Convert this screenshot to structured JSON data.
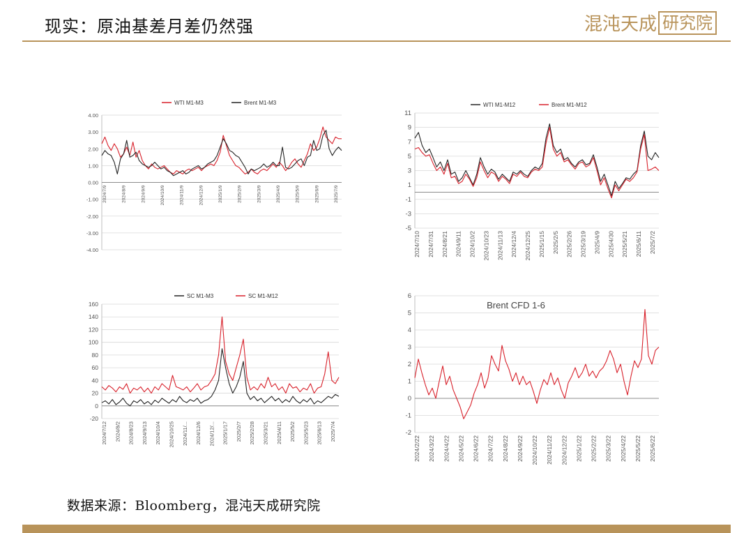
{
  "header": {
    "title": "现实：原油基差月差仍然强",
    "logo_main": "混沌天成",
    "logo_boxed": "研究院"
  },
  "footer": {
    "source": "数据来源：Bloomberg，混沌天成研究院"
  },
  "colors": {
    "red": "#d8202a",
    "black": "#222222",
    "gold": "#b8935a",
    "grid": "#d9d9d9"
  },
  "chart_data": [
    {
      "id": "chart1",
      "type": "line",
      "title": "",
      "ylim": [
        -4,
        4
      ],
      "yticks": [
        4.0,
        3.0,
        2.0,
        1.0,
        0.0,
        -1.0,
        -2.0,
        -3.0,
        -4.0
      ],
      "ytick_labels": [
        "4.00",
        "3.00",
        "2.00",
        "1.00",
        "0.00",
        "-1.00",
        "-2.00",
        "-3.00",
        "-4.00"
      ],
      "xticks": [
        "2024/7/9",
        "2024/8/9",
        "2024/9/9",
        "2024/10/9",
        "2024/11/9",
        "2024/12/9",
        "2025/1/9",
        "2025/2/9",
        "2025/3/9",
        "2025/4/9",
        "2025/5/9",
        "2025/6/9",
        "2025/7/9"
      ],
      "legend_position": "top",
      "series": [
        {
          "name": "WTI M1-M3",
          "color": "#d8202a",
          "values": [
            2.3,
            2.7,
            2.2,
            1.9,
            2.3,
            2.0,
            1.5,
            1.7,
            2.1,
            1.6,
            2.4,
            1.5,
            1.9,
            1.3,
            1.0,
            0.8,
            1.1,
            0.9,
            0.8,
            0.9,
            1.0,
            0.8,
            0.6,
            0.5,
            0.7,
            0.6,
            0.5,
            0.7,
            0.8,
            0.7,
            0.8,
            0.9,
            0.7,
            0.9,
            1.0,
            1.1,
            1.0,
            1.3,
            1.8,
            2.8,
            2.2,
            1.6,
            1.3,
            1.0,
            0.9,
            0.7,
            0.5,
            0.6,
            0.8,
            0.6,
            0.5,
            0.7,
            0.8,
            0.7,
            0.9,
            1.1,
            0.9,
            1.2,
            1.0,
            0.7,
            0.9,
            1.2,
            1.4,
            1.1,
            0.9,
            1.3,
            1.7,
            2.3,
            1.9,
            2.1,
            2.6,
            3.3,
            2.7,
            2.5,
            2.3,
            2.7,
            2.6,
            2.6
          ]
        },
        {
          "name": "Brent M1-M3",
          "color": "#222222",
          "values": [
            1.6,
            1.9,
            1.7,
            1.6,
            1.2,
            0.5,
            1.4,
            1.7,
            2.5,
            1.5,
            1.6,
            1.8,
            1.3,
            1.1,
            1.0,
            0.9,
            1.0,
            1.2,
            1.0,
            0.8,
            0.9,
            0.7,
            0.6,
            0.4,
            0.5,
            0.6,
            0.7,
            0.5,
            0.6,
            0.8,
            0.9,
            1.0,
            0.8,
            0.9,
            1.1,
            1.2,
            1.3,
            1.6,
            2.1,
            2.6,
            2.3,
            1.9,
            1.8,
            1.6,
            1.5,
            1.2,
            0.9,
            0.5,
            0.8,
            0.7,
            0.8,
            0.9,
            1.1,
            0.9,
            1.0,
            1.2,
            1.0,
            1.0,
            2.1,
            0.9,
            0.8,
            0.9,
            1.1,
            1.3,
            1.4,
            1.0,
            1.5,
            1.6,
            2.5,
            1.9,
            2.0,
            2.8,
            3.1,
            2.0,
            1.6,
            1.9,
            2.1,
            1.9
          ]
        }
      ]
    },
    {
      "id": "chart2",
      "type": "line",
      "title": "",
      "ylim": [
        -5,
        11
      ],
      "yticks": [
        11,
        9,
        7,
        5,
        3,
        1,
        -1,
        -3,
        -5
      ],
      "ytick_labels": [
        "11",
        "9",
        "7",
        "5",
        "3",
        "1",
        "-1",
        "-3",
        "-5"
      ],
      "xticks": [
        "2024/7/10",
        "2024/7/31",
        "2024/8/21",
        "2024/9/11",
        "2024/10/2",
        "2024/10/23",
        "2024/11/13",
        "2024/12/4",
        "2024/12/25",
        "2025/1/15",
        "2025/2/5",
        "2025/2/26",
        "2025/3/19",
        "2025/4/9",
        "2025/4/30",
        "2025/5/21",
        "2025/6/11",
        "2025/7/2"
      ],
      "legend_position": "top",
      "series": [
        {
          "name": "WTI M1-M12",
          "color": "#222222",
          "values": [
            7.5,
            8.3,
            6.5,
            5.5,
            6.0,
            4.8,
            3.5,
            4.2,
            3.0,
            4.5,
            2.5,
            2.8,
            1.5,
            2.0,
            3.0,
            2.0,
            1.0,
            2.5,
            4.8,
            3.5,
            2.5,
            3.2,
            2.8,
            1.8,
            2.5,
            2.0,
            1.5,
            2.8,
            2.5,
            3.0,
            2.5,
            2.2,
            3.0,
            3.5,
            3.2,
            4.0,
            7.5,
            9.5,
            6.5,
            5.5,
            6.0,
            4.5,
            4.8,
            4.0,
            3.5,
            4.2,
            4.5,
            3.8,
            4.0,
            5.2,
            3.5,
            1.5,
            2.5,
            1.0,
            -0.5,
            1.5,
            0.5,
            1.2,
            2.0,
            1.8,
            2.5,
            3.0,
            6.5,
            8.5,
            5.0,
            4.5,
            5.5,
            4.8
          ]
        },
        {
          "name": "Brent M1-M12",
          "color": "#d8202a",
          "values": [
            6.0,
            6.2,
            5.5,
            5.0,
            5.2,
            4.0,
            3.0,
            3.5,
            2.5,
            4.0,
            2.0,
            2.2,
            1.2,
            1.5,
            2.5,
            1.8,
            0.8,
            2.0,
            4.2,
            3.0,
            2.0,
            2.8,
            2.5,
            1.5,
            2.2,
            1.8,
            1.2,
            2.5,
            2.2,
            2.8,
            2.2,
            2.0,
            2.8,
            3.2,
            3.0,
            3.5,
            6.8,
            9.0,
            6.0,
            5.0,
            5.5,
            4.2,
            4.5,
            3.8,
            3.2,
            4.0,
            4.2,
            3.5,
            3.8,
            4.8,
            3.0,
            1.0,
            2.0,
            0.5,
            -0.8,
            1.0,
            0.2,
            1.0,
            1.8,
            1.5,
            2.0,
            2.8,
            6.0,
            8.0,
            3.0,
            3.2,
            3.5,
            3.0
          ]
        }
      ]
    },
    {
      "id": "chart3",
      "type": "line",
      "title": "",
      "ylim": [
        -20,
        160
      ],
      "yticks": [
        160,
        140,
        120,
        100,
        80,
        60,
        40,
        20,
        0,
        -20
      ],
      "ytick_labels": [
        "160",
        "140",
        "120",
        "100",
        "80",
        "60",
        "40",
        "20",
        "0",
        "-20"
      ],
      "xticks": [
        "2024/7/12",
        "2024/8/2",
        "2024/8/23",
        "2024/9/13",
        "2024/10/4",
        "2024/10/25",
        "2024/11/...",
        "2024/12/6",
        "2024/12/...",
        "2025/1/17",
        "2025/2/7",
        "2025/2/28",
        "2025/3/21",
        "2025/4/11",
        "2025/5/2",
        "2025/5/23",
        "2025/6/13",
        "2025/7/4"
      ],
      "legend_position": "top",
      "series": [
        {
          "name": "SC M1-M3",
          "color": "#222222",
          "values": [
            5,
            8,
            3,
            10,
            2,
            6,
            12,
            4,
            0,
            8,
            5,
            10,
            3,
            7,
            2,
            9,
            5,
            12,
            8,
            4,
            10,
            6,
            15,
            8,
            5,
            10,
            7,
            12,
            4,
            8,
            10,
            15,
            25,
            40,
            90,
            60,
            35,
            20,
            30,
            45,
            70,
            20,
            10,
            15,
            8,
            12,
            5,
            10,
            15,
            8,
            12,
            5,
            10,
            6,
            15,
            8,
            4,
            10,
            6,
            12,
            3,
            8,
            5,
            10,
            15,
            12,
            18,
            15
          ]
        },
        {
          "name": "SC M1-M12",
          "color": "#d8202a",
          "values": [
            30,
            25,
            32,
            28,
            22,
            30,
            26,
            35,
            20,
            28,
            25,
            30,
            22,
            28,
            20,
            30,
            25,
            35,
            30,
            25,
            48,
            30,
            28,
            25,
            30,
            22,
            28,
            35,
            25,
            30,
            32,
            40,
            50,
            80,
            140,
            70,
            50,
            40,
            60,
            80,
            105,
            45,
            25,
            30,
            25,
            35,
            28,
            45,
            30,
            35,
            25,
            30,
            20,
            35,
            28,
            30,
            22,
            28,
            25,
            35,
            20,
            28,
            30,
            50,
            85,
            40,
            35,
            45
          ]
        }
      ]
    },
    {
      "id": "chart4",
      "type": "line",
      "title": "Brent CFD 1-6",
      "ylim": [
        -2,
        6
      ],
      "yticks": [
        6,
        5,
        4,
        3,
        2,
        1,
        0,
        -1,
        -2
      ],
      "ytick_labels": [
        "6",
        "5",
        "4",
        "3",
        "2",
        "1",
        "0",
        "-1",
        "-2"
      ],
      "xticks": [
        "2024/2/22",
        "2024/3/22",
        "2024/4/22",
        "2024/5/22",
        "2024/6/22",
        "2024/7/22",
        "2024/8/22",
        "2024/9/22",
        "2024/10/22",
        "2024/11/22",
        "2024/12/22",
        "2025/1/22",
        "2025/2/22",
        "2025/3/22",
        "2025/4/22",
        "2025/5/22",
        "2025/6/22"
      ],
      "legend_position": "none",
      "series": [
        {
          "name": "",
          "color": "#d8202a",
          "values": [
            1.2,
            2.3,
            1.5,
            0.8,
            0.2,
            0.6,
            0.0,
            1.0,
            1.9,
            0.8,
            1.3,
            0.5,
            0.0,
            -0.5,
            -1.2,
            -0.8,
            -0.4,
            0.3,
            0.8,
            1.5,
            0.6,
            1.2,
            2.5,
            2.0,
            1.6,
            3.1,
            2.2,
            1.7,
            1.0,
            1.5,
            0.8,
            1.3,
            0.8,
            1.0,
            0.4,
            -0.3,
            0.5,
            1.1,
            0.8,
            1.5,
            0.8,
            1.2,
            0.5,
            0.0,
            0.9,
            1.3,
            1.8,
            1.2,
            1.5,
            2.0,
            1.3,
            1.6,
            1.2,
            1.6,
            1.8,
            2.2,
            2.8,
            2.3,
            1.5,
            2.0,
            1.0,
            0.2,
            1.3,
            2.2,
            1.8,
            2.3,
            5.2,
            2.5,
            2.0,
            2.8,
            3.0
          ]
        }
      ]
    }
  ]
}
